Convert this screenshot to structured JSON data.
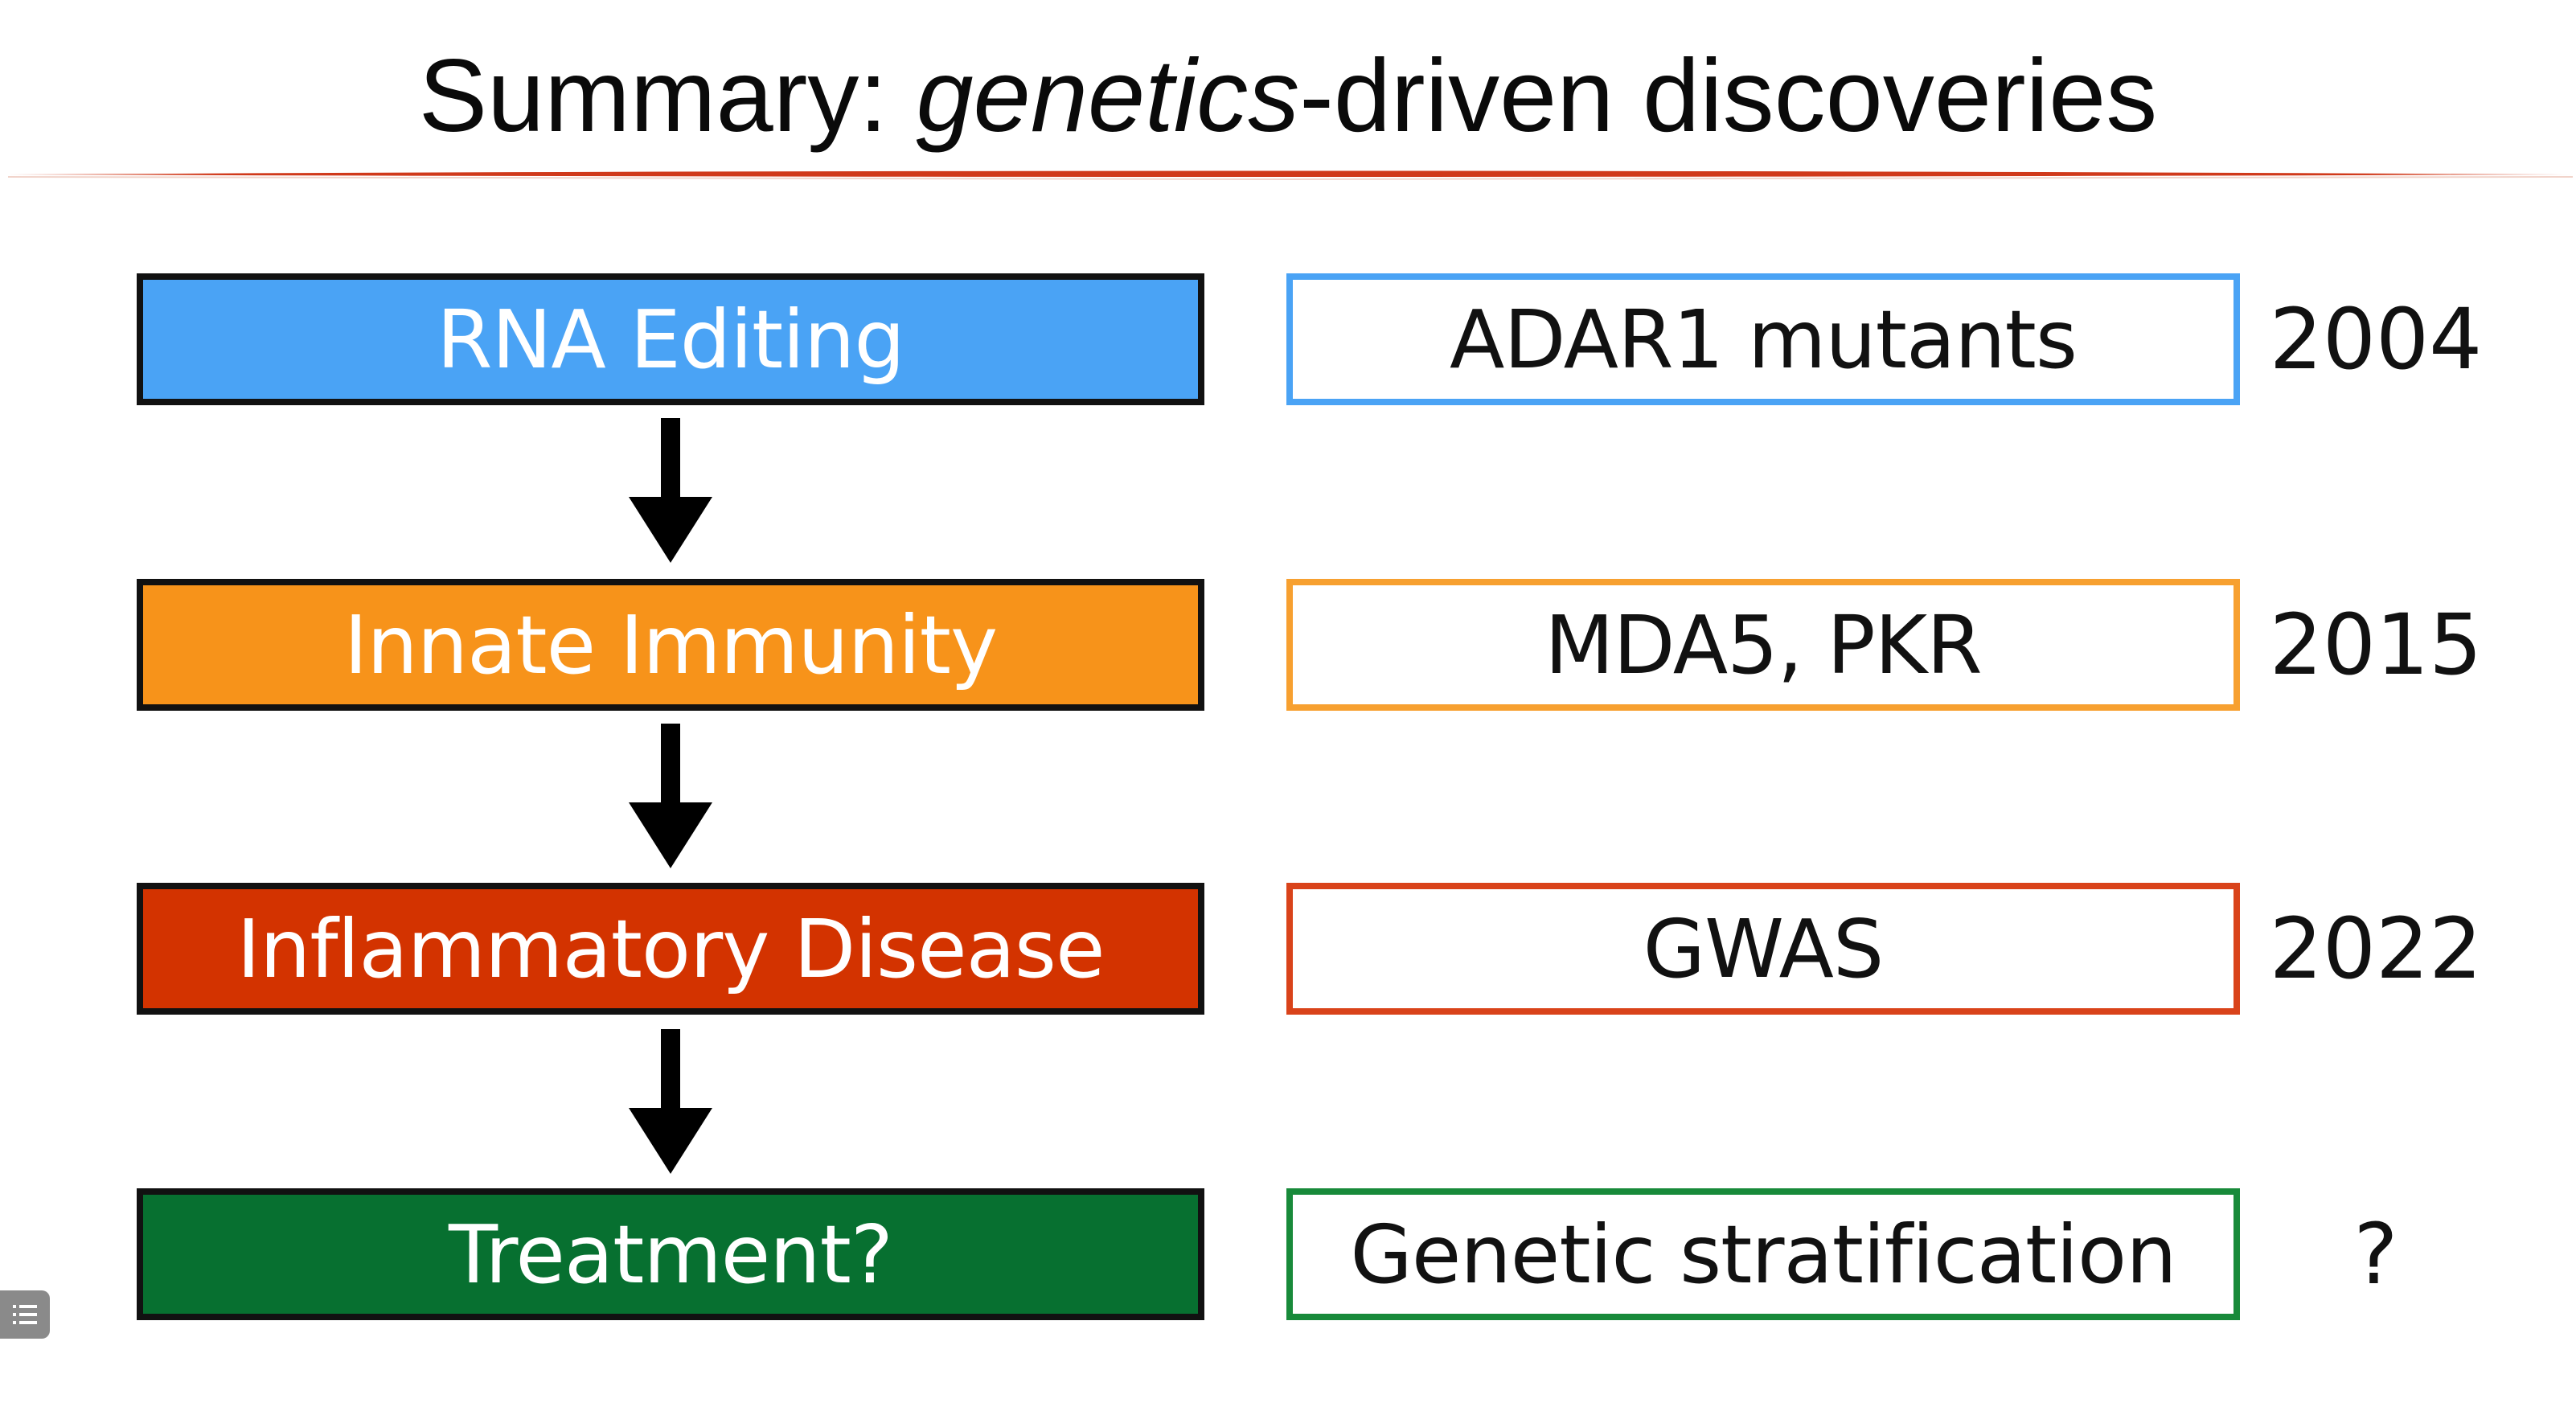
{
  "title": {
    "prefix": "Summary: ",
    "emphasis": "genetics",
    "suffix": "-driven discoveries"
  },
  "colors": {
    "rule": "#d0391a",
    "rna_editing": "#4aa3f5",
    "innate_immunity": "#f7931a",
    "inflammatory_disease": "#d33300",
    "treatment": "#077030",
    "box_outline": "#111111"
  },
  "rows": [
    {
      "stage": "RNA Editing",
      "evidence": "ADAR1 mutants",
      "year": "2004"
    },
    {
      "stage": "Innate Immunity",
      "evidence": "MDA5, PKR",
      "year": "2015"
    },
    {
      "stage": "Inflammatory Disease",
      "evidence": "GWAS",
      "year": "2022"
    },
    {
      "stage": "Treatment?",
      "evidence": "Genetic stratification",
      "year": "?"
    }
  ],
  "icons": {
    "arrow": "arrow-down-icon",
    "corner": "list-icon"
  }
}
